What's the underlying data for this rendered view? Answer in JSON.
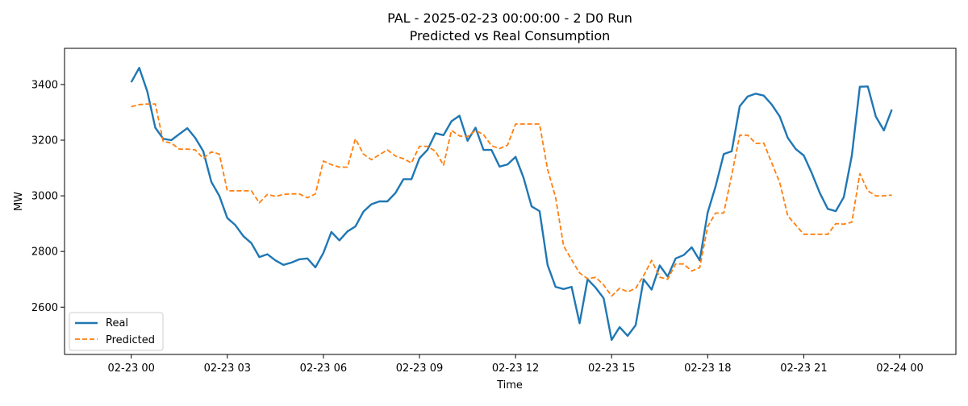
{
  "chart_data": {
    "type": "line",
    "title": "PAL - 2025-02-23 00:00:00 - 2 D0 Run",
    "subtitle": "Predicted vs Real Consumption",
    "xlabel": "Time",
    "ylabel": "MW",
    "xlim": [
      "2025-02-22 21:55",
      "2025-02-24 01:45"
    ],
    "ylim": [
      2430,
      3530
    ],
    "x_ticks": [
      "02-23 00",
      "02-23 03",
      "02-23 06",
      "02-23 09",
      "02-23 12",
      "02-23 15",
      "02-23 18",
      "02-23 21",
      "02-24 00"
    ],
    "y_ticks": [
      2600,
      2800,
      3000,
      3200,
      3400
    ],
    "grid": false,
    "legend_position": "lower-left",
    "x": [
      "00:00",
      "00:15",
      "00:30",
      "00:45",
      "01:00",
      "01:15",
      "01:30",
      "01:45",
      "02:00",
      "02:15",
      "02:30",
      "02:45",
      "03:00",
      "03:15",
      "03:30",
      "03:45",
      "04:00",
      "04:15",
      "04:30",
      "04:45",
      "05:00",
      "05:15",
      "05:30",
      "05:45",
      "06:00",
      "06:15",
      "06:30",
      "06:45",
      "07:00",
      "07:15",
      "07:30",
      "07:45",
      "08:00",
      "08:15",
      "08:30",
      "08:45",
      "09:00",
      "09:15",
      "09:30",
      "09:45",
      "10:00",
      "10:15",
      "10:30",
      "10:45",
      "11:00",
      "11:15",
      "11:30",
      "11:45",
      "12:00",
      "12:15",
      "12:30",
      "12:45",
      "13:00",
      "13:15",
      "13:30",
      "13:45",
      "14:00",
      "14:15",
      "14:30",
      "14:45",
      "15:00",
      "15:15",
      "15:30",
      "15:45",
      "16:00",
      "16:15",
      "16:30",
      "16:45",
      "17:00",
      "17:15",
      "17:30",
      "17:45",
      "18:00",
      "18:15",
      "18:30",
      "18:45",
      "19:00",
      "19:15",
      "19:30",
      "19:45",
      "20:00",
      "20:15",
      "20:30",
      "20:45",
      "21:00",
      "21:15",
      "21:30",
      "21:45",
      "22:00",
      "22:15",
      "22:30",
      "22:45",
      "23:00",
      "23:15",
      "23:30",
      "23:45"
    ],
    "series": [
      {
        "name": "Real",
        "color": "#1f77b4",
        "style": "solid",
        "values": [
          3408,
          3460,
          3375,
          3245,
          3205,
          3200,
          3222,
          3243,
          3208,
          3160,
          3050,
          3000,
          2920,
          2895,
          2855,
          2830,
          2780,
          2790,
          2768,
          2752,
          2760,
          2772,
          2775,
          2743,
          2795,
          2870,
          2840,
          2872,
          2890,
          2943,
          2970,
          2980,
          2980,
          3010,
          3060,
          3060,
          3135,
          3165,
          3225,
          3218,
          3268,
          3288,
          3198,
          3245,
          3165,
          3165,
          3105,
          3113,
          3140,
          3065,
          2962,
          2945,
          2752,
          2673,
          2665,
          2673,
          2542,
          2700,
          2670,
          2632,
          2482,
          2528,
          2497,
          2535,
          2700,
          2663,
          2750,
          2710,
          2775,
          2787,
          2815,
          2768,
          2940,
          3035,
          3150,
          3160,
          3322,
          3357,
          3367,
          3360,
          3328,
          3285,
          3208,
          3168,
          3145,
          3082,
          3010,
          2953,
          2945,
          2995,
          3145,
          3392,
          3393,
          3285,
          3235,
          3310
        ]
      },
      {
        "name": "Predicted",
        "color": "#ff7f0e",
        "style": "dashed",
        "values": [
          3320,
          3328,
          3330,
          3330,
          3195,
          3190,
          3168,
          3168,
          3165,
          3135,
          3158,
          3150,
          3018,
          3018,
          3018,
          3018,
          2975,
          3005,
          2998,
          3005,
          3007,
          3007,
          2993,
          3007,
          3125,
          3112,
          3103,
          3103,
          3205,
          3150,
          3130,
          3148,
          3165,
          3143,
          3133,
          3118,
          3178,
          3178,
          3160,
          3110,
          3235,
          3215,
          3213,
          3235,
          3220,
          3180,
          3170,
          3182,
          3258,
          3258,
          3258,
          3258,
          3095,
          2995,
          2820,
          2770,
          2723,
          2702,
          2707,
          2680,
          2640,
          2668,
          2655,
          2668,
          2713,
          2768,
          2708,
          2700,
          2755,
          2755,
          2730,
          2742,
          2890,
          2938,
          2938,
          3075,
          3218,
          3218,
          3188,
          3190,
          3118,
          3048,
          2928,
          2895,
          2862,
          2862,
          2862,
          2862,
          2900,
          2898,
          2905,
          3080,
          3018,
          3000,
          3000,
          3003
        ]
      }
    ]
  }
}
